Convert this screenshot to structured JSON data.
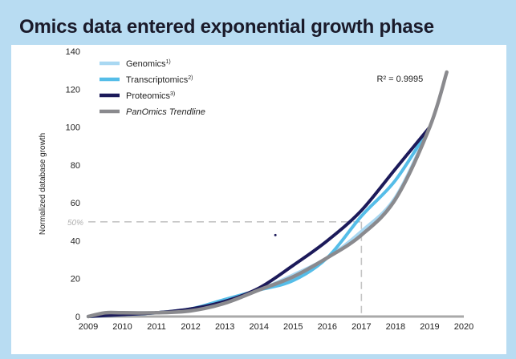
{
  "header": {
    "title": "Omics data entered exponential growth phase"
  },
  "chart_data": {
    "type": "line",
    "title": "Omics data entered exponential growth phase",
    "xlabel": "",
    "ylabel": "Normalized database growth",
    "xlim": [
      2009,
      2020
    ],
    "ylim": [
      0,
      140
    ],
    "x_ticks": [
      "2009",
      "2010",
      "2011",
      "2012",
      "2013",
      "2014",
      "2015",
      "2016",
      "2017",
      "2018",
      "2019",
      "2020"
    ],
    "y_ticks": [
      "0",
      "20",
      "40",
      "60",
      "80",
      "100",
      "120",
      "140"
    ],
    "grid": false,
    "legend_position": "top-left",
    "annotations": {
      "r_squared": "R² = 0.9995",
      "half_label": "50%",
      "half_value": 50,
      "half_year": 2017
    },
    "series": [
      {
        "name": "Genomics",
        "superscript": "1)",
        "italic": false,
        "color": "#a9d8f2",
        "x": [
          2009,
          2010,
          2011,
          2012,
          2013,
          2014,
          2015,
          2016,
          2017,
          2018,
          2019
        ],
        "y": [
          0,
          1,
          2,
          4,
          8,
          14,
          22,
          31,
          45,
          63,
          100
        ]
      },
      {
        "name": "Transcriptomics",
        "superscript": "2)",
        "italic": false,
        "color": "#55bde8",
        "x": [
          2009,
          2010,
          2011,
          2012,
          2013,
          2014,
          2015,
          2016,
          2017,
          2018,
          2019
        ],
        "y": [
          0,
          1,
          2,
          4,
          9,
          14,
          19,
          31,
          53,
          72,
          100
        ]
      },
      {
        "name": "Proteomics",
        "superscript": "3)",
        "italic": false,
        "color": "#1c1a5a",
        "x": [
          2009,
          2010,
          2011,
          2012,
          2013,
          2014,
          2015,
          2016,
          2017,
          2018,
          2019
        ],
        "y": [
          0,
          1,
          2,
          4,
          8,
          15,
          27,
          40,
          56,
          78,
          100
        ]
      },
      {
        "name": "PanOmics Trendline",
        "superscript": "",
        "italic": true,
        "color": "#8a8a8e",
        "x": [
          2009,
          2009.5,
          2010,
          2011,
          2012,
          2013,
          2014,
          2015,
          2016,
          2017,
          2018,
          2019,
          2019.5
        ],
        "y": [
          0,
          2,
          2,
          2,
          3,
          7,
          14,
          21,
          31,
          43,
          62,
          100,
          129
        ]
      }
    ],
    "stray_point": {
      "x": 2014.48,
      "y": 43,
      "color": "#1c1a5a"
    }
  }
}
